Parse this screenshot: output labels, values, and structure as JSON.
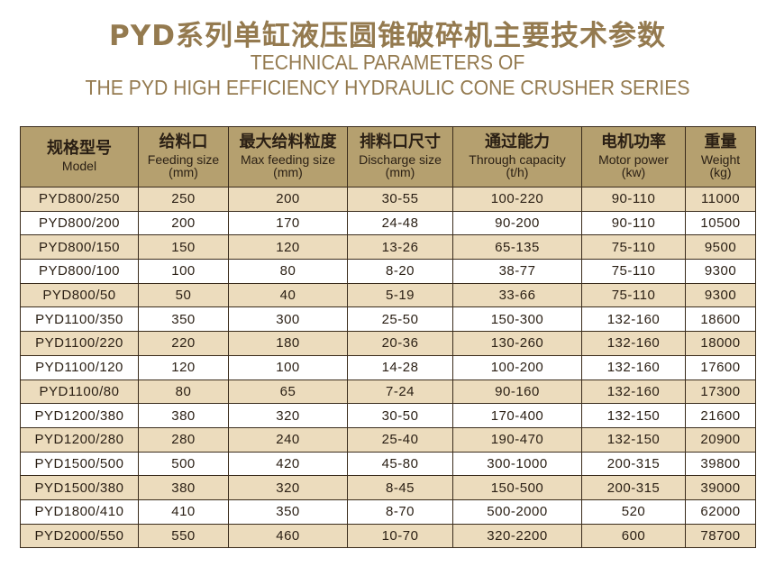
{
  "title_cn": "PYD系列单缸液压圆锥破碎机主要技术参数",
  "title_en_1": "TECHNICAL PARAMETERS OF",
  "title_en_2": "THE PYD HIGH EFFICIENCY HYDRAULIC CONE CRUSHER SERIES",
  "colors": {
    "header_bg": "#b5a06f",
    "row_tan": "#ecdcbd",
    "title": "#947a4f"
  },
  "columns": [
    {
      "zh": "规格型号",
      "en": "Model",
      "unit": ""
    },
    {
      "zh": "给料口",
      "en": "Feeding size",
      "unit": "(mm)"
    },
    {
      "zh": "最大给料粒度",
      "en": "Max feeding size",
      "unit": "(mm)"
    },
    {
      "zh": "排料口尺寸",
      "en": "Discharge size",
      "unit": "(mm)"
    },
    {
      "zh": "通过能力",
      "en": "Through capacity",
      "unit": "(t/h)"
    },
    {
      "zh": "电机功率",
      "en": "Motor power",
      "unit": "(kw)"
    },
    {
      "zh": "重量",
      "en": "Weight",
      "unit": "(kg)"
    }
  ],
  "rows": [
    [
      "PYD800/250",
      "250",
      "200",
      "30-55",
      "100-220",
      "90-110",
      "11000"
    ],
    [
      "PYD800/200",
      "200",
      "170",
      "24-48",
      "90-200",
      "90-110",
      "10500"
    ],
    [
      "PYD800/150",
      "150",
      "120",
      "13-26",
      "65-135",
      "75-110",
      "9500"
    ],
    [
      "PYD800/100",
      "100",
      "80",
      "8-20",
      "38-77",
      "75-110",
      "9300"
    ],
    [
      "PYD800/50",
      "50",
      "40",
      "5-19",
      "33-66",
      "75-110",
      "9300"
    ],
    [
      "PYD1100/350",
      "350",
      "300",
      "25-50",
      "150-300",
      "132-160",
      "18600"
    ],
    [
      "PYD1100/220",
      "220",
      "180",
      "20-36",
      "130-260",
      "132-160",
      "18000"
    ],
    [
      "PYD1100/120",
      "120",
      "100",
      "14-28",
      "100-200",
      "132-160",
      "17600"
    ],
    [
      "PYD1100/80",
      "80",
      "65",
      "7-24",
      "90-160",
      "132-160",
      "17300"
    ],
    [
      "PYD1200/380",
      "380",
      "320",
      "30-50",
      "170-400",
      "132-150",
      "21600"
    ],
    [
      "PYD1200/280",
      "280",
      "240",
      "25-40",
      "190-470",
      "132-150",
      "20900"
    ],
    [
      "PYD1500/500",
      "500",
      "420",
      "45-80",
      "300-1000",
      "200-315",
      "39800"
    ],
    [
      "PYD1500/380",
      "380",
      "320",
      "8-45",
      "150-500",
      "200-315",
      "39000"
    ],
    [
      "PYD1800/410",
      "410",
      "350",
      "8-70",
      "500-2000",
      "520",
      "62000"
    ],
    [
      "PYD2000/550",
      "550",
      "460",
      "10-70",
      "320-2200",
      "600",
      "78700"
    ]
  ]
}
